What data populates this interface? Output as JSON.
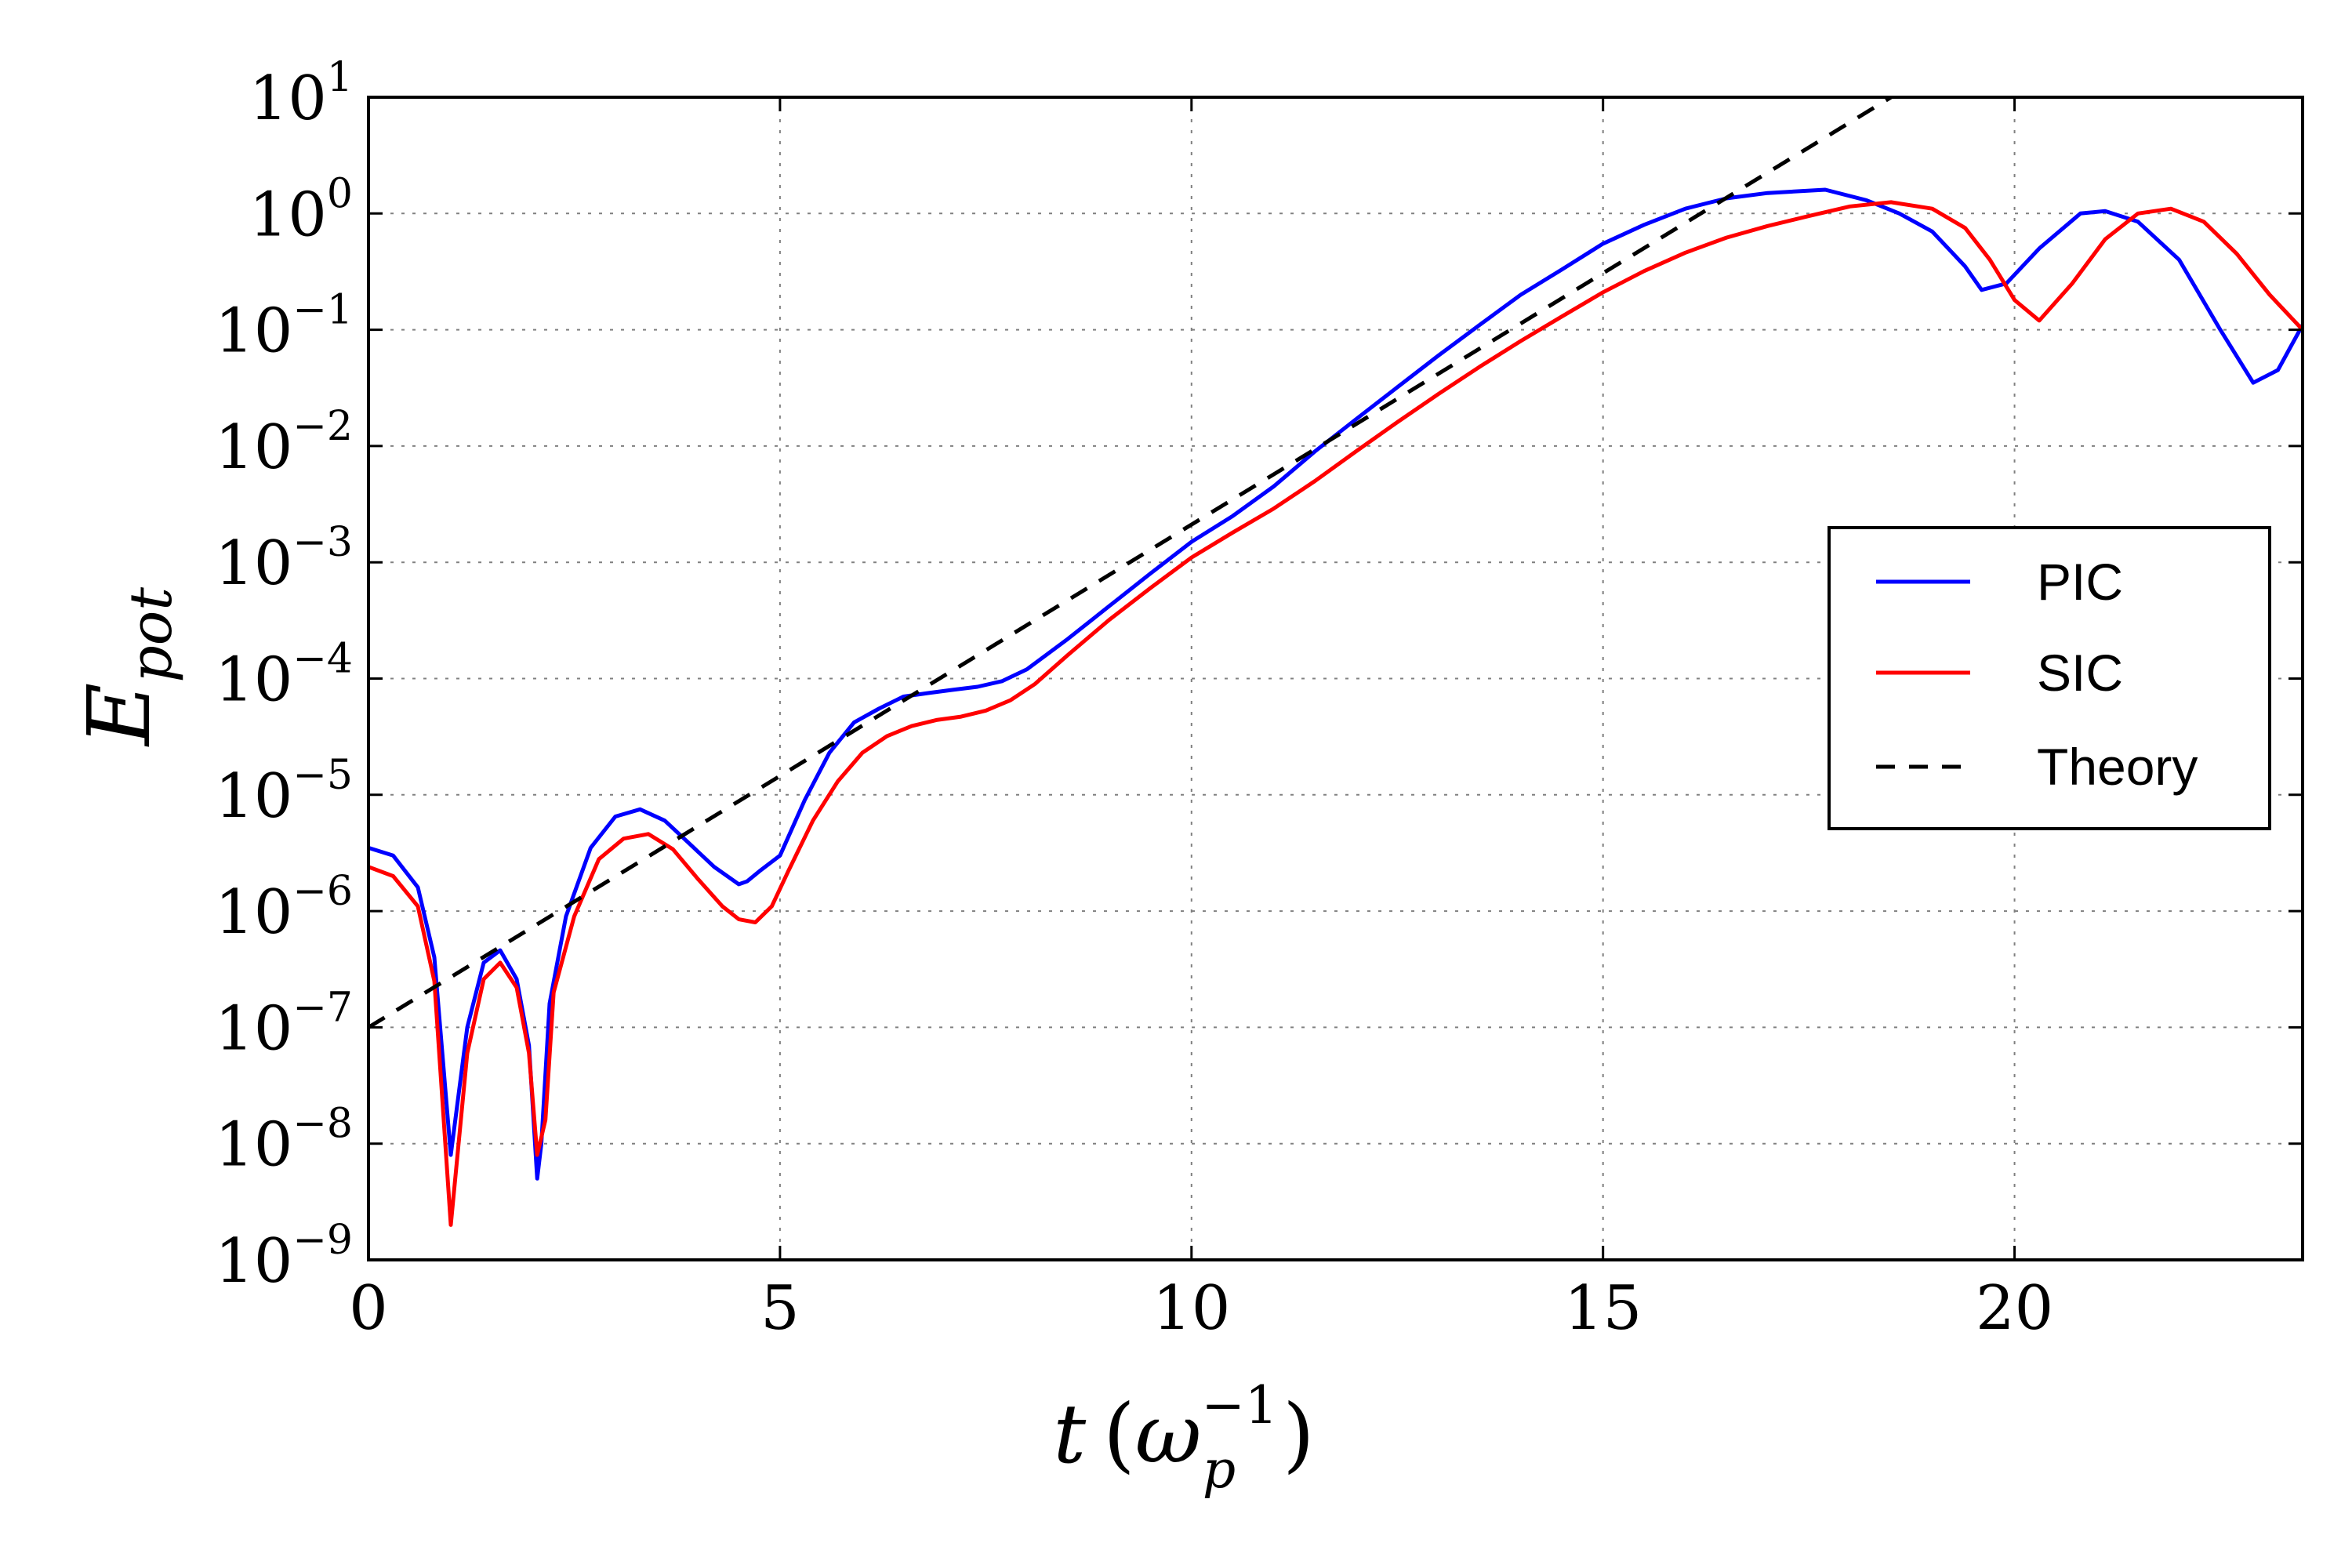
{
  "chart_data": {
    "type": "line",
    "xlabel": {
      "main": "t",
      "open": "(",
      "omega": "ω",
      "subscript": "p",
      "superscript": "−1",
      "close": ")"
    },
    "ylabel": {
      "main": "E",
      "subscript": "pot"
    },
    "xlim": [
      0,
      23.5
    ],
    "ylim": [
      1e-09,
      10
    ],
    "yscale": "log",
    "grid": true,
    "legend_position": "center-right",
    "x_ticks": [
      {
        "value": 0,
        "label": "0"
      },
      {
        "value": 5,
        "label": "5"
      },
      {
        "value": 10,
        "label": "10"
      },
      {
        "value": 15,
        "label": "15"
      },
      {
        "value": 20,
        "label": "20"
      }
    ],
    "y_ticks": [
      {
        "exp": 1,
        "base": "10",
        "sup": "1"
      },
      {
        "exp": 0,
        "base": "10",
        "sup": "0"
      },
      {
        "exp": -1,
        "base": "10",
        "sup": "−1"
      },
      {
        "exp": -2,
        "base": "10",
        "sup": "−2"
      },
      {
        "exp": -3,
        "base": "10",
        "sup": "−3"
      },
      {
        "exp": -4,
        "base": "10",
        "sup": "−4"
      },
      {
        "exp": -5,
        "base": "10",
        "sup": "−5"
      },
      {
        "exp": -6,
        "base": "10",
        "sup": "−6"
      },
      {
        "exp": -7,
        "base": "10",
        "sup": "−7"
      },
      {
        "exp": -8,
        "base": "10",
        "sup": "−8"
      },
      {
        "exp": -9,
        "base": "10",
        "sup": "−9"
      }
    ],
    "series": [
      {
        "name": "PIC",
        "color": "#0000ff",
        "style": "solid",
        "x": [
          0,
          0.3,
          0.6,
          0.8,
          1.0,
          1.2,
          1.4,
          1.6,
          1.8,
          1.95,
          2.05,
          2.1,
          2.2,
          2.4,
          2.7,
          3.0,
          3.3,
          3.6,
          3.9,
          4.2,
          4.5,
          4.6,
          4.75,
          5.0,
          5.3,
          5.6,
          5.9,
          6.2,
          6.5,
          6.8,
          7.1,
          7.4,
          7.7,
          8.0,
          8.5,
          9.0,
          9.5,
          10.0,
          10.5,
          11.0,
          11.5,
          12.0,
          12.5,
          13.0,
          13.5,
          14.0,
          14.5,
          15.0,
          15.5,
          16.0,
          16.5,
          17.0,
          17.7,
          18.2,
          18.6,
          19.0,
          19.4,
          19.6,
          19.9,
          20.3,
          20.8,
          21.1,
          21.5,
          22.0,
          22.5,
          22.9,
          23.2,
          23.5
        ],
        "y": [
          3.5e-06,
          3e-06,
          1.6e-06,
          4e-07,
          8e-09,
          1e-07,
          3.6e-07,
          4.6e-07,
          2.6e-07,
          7e-08,
          5e-09,
          1e-08,
          1.6e-07,
          9e-07,
          3.5e-06,
          6.5e-06,
          7.5e-06,
          6e-06,
          3.8e-06,
          2.4e-06,
          1.7e-06,
          1.8e-06,
          2.2e-06,
          3e-06,
          9e-06,
          2.3e-05,
          4.2e-05,
          5.5e-05,
          7e-05,
          7.5e-05,
          8e-05,
          8.5e-05,
          9.5e-05,
          0.00012,
          0.00022,
          0.00042,
          0.0008,
          0.0015,
          0.0025,
          0.0045,
          0.009,
          0.017,
          0.032,
          0.06,
          0.11,
          0.2,
          0.33,
          0.55,
          0.8,
          1.1,
          1.35,
          1.5,
          1.6,
          1.3,
          1.0,
          0.7,
          0.35,
          0.22,
          0.25,
          0.5,
          1.0,
          1.05,
          0.85,
          0.4,
          0.1,
          0.035,
          0.045,
          0.11
        ]
      },
      {
        "name": "SIC",
        "color": "#ff0000",
        "style": "solid",
        "x": [
          0,
          0.3,
          0.6,
          0.8,
          1.0,
          1.2,
          1.4,
          1.6,
          1.8,
          1.95,
          2.05,
          2.15,
          2.25,
          2.5,
          2.8,
          3.1,
          3.4,
          3.7,
          4.0,
          4.3,
          4.5,
          4.7,
          4.9,
          5.1,
          5.4,
          5.7,
          6.0,
          6.3,
          6.6,
          6.9,
          7.2,
          7.5,
          7.8,
          8.1,
          8.5,
          9.0,
          9.5,
          10.0,
          10.5,
          11.0,
          11.5,
          12.0,
          12.5,
          13.0,
          13.5,
          14.0,
          14.5,
          15.0,
          15.5,
          16.0,
          16.5,
          17.0,
          17.5,
          18.0,
          18.5,
          19.0,
          19.4,
          19.7,
          20.0,
          20.3,
          20.7,
          21.1,
          21.5,
          21.9,
          22.3,
          22.7,
          23.1,
          23.5
        ],
        "y": [
          2.4e-06,
          2e-06,
          1.1e-06,
          2.5e-07,
          2e-09,
          6e-08,
          2.6e-07,
          3.6e-07,
          2.2e-07,
          6e-08,
          8e-09,
          1.6e-08,
          2e-07,
          9e-07,
          2.8e-06,
          4.2e-06,
          4.6e-06,
          3.4e-06,
          1.9e-06,
          1.1e-06,
          8.5e-07,
          8e-07,
          1.1e-06,
          2.2e-06,
          6e-06,
          1.3e-05,
          2.3e-05,
          3.2e-05,
          3.9e-05,
          4.4e-05,
          4.7e-05,
          5.3e-05,
          6.5e-05,
          9e-05,
          0.00016,
          0.00032,
          0.0006,
          0.0011,
          0.0018,
          0.0029,
          0.005,
          0.009,
          0.016,
          0.028,
          0.048,
          0.08,
          0.13,
          0.21,
          0.32,
          0.46,
          0.62,
          0.78,
          0.95,
          1.15,
          1.25,
          1.1,
          0.75,
          0.4,
          0.18,
          0.12,
          0.25,
          0.6,
          1.0,
          1.1,
          0.85,
          0.45,
          0.2,
          0.1
        ]
      },
      {
        "name": "Theory",
        "color": "#000000",
        "style": "dashed",
        "x": [
          0,
          18.5
        ],
        "y": [
          1e-07,
          10
        ]
      }
    ]
  }
}
